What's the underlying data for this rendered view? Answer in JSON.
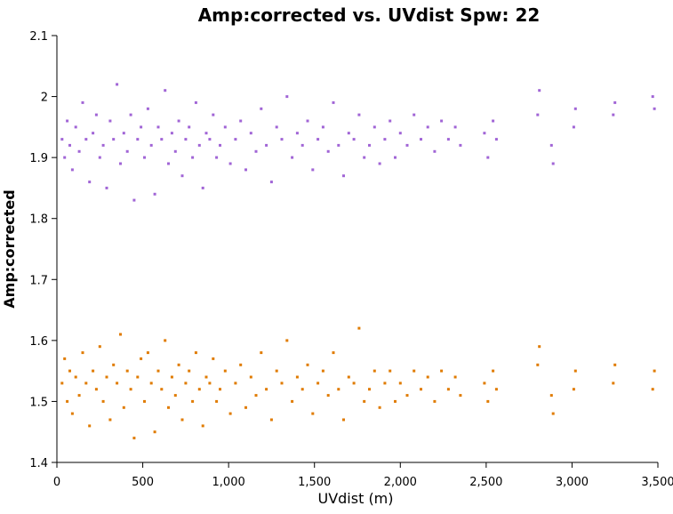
{
  "chart_data": {
    "type": "scatter",
    "title": "Amp:corrected vs. UVdist Spw: 22",
    "xlabel": "UVdist (m)",
    "ylabel": "Amp:corrected",
    "xlim": [
      0,
      3500
    ],
    "ylim": [
      1.4,
      2.1
    ],
    "x_ticks": [
      {
        "value": 0,
        "label": "0"
      },
      {
        "value": 500,
        "label": "500"
      },
      {
        "value": 1000,
        "label": "1,000"
      },
      {
        "value": 1500,
        "label": "1,500"
      },
      {
        "value": 2000,
        "label": "2,000"
      },
      {
        "value": 2500,
        "label": "2,500"
      },
      {
        "value": 3000,
        "label": "3,000"
      },
      {
        "value": 3500,
        "label": "3,500"
      }
    ],
    "y_ticks": [
      {
        "value": 1.4,
        "label": "1.4"
      },
      {
        "value": 1.5,
        "label": "1.5"
      },
      {
        "value": 1.6,
        "label": "1.6"
      },
      {
        "value": 1.7,
        "label": "1.7"
      },
      {
        "value": 1.8,
        "label": "1.8"
      },
      {
        "value": 1.9,
        "label": "1.9"
      },
      {
        "value": 2.0,
        "label": "2"
      },
      {
        "value": 2.1,
        "label": "2.1"
      }
    ],
    "grid": false,
    "legend": "none",
    "series": [
      {
        "color": "#a165d6",
        "points": [
          [
            30,
            1.93
          ],
          [
            45,
            1.9
          ],
          [
            60,
            1.96
          ],
          [
            75,
            1.92
          ],
          [
            90,
            1.88
          ],
          [
            110,
            1.95
          ],
          [
            130,
            1.91
          ],
          [
            150,
            1.99
          ],
          [
            170,
            1.93
          ],
          [
            190,
            1.86
          ],
          [
            210,
            1.94
          ],
          [
            230,
            1.97
          ],
          [
            250,
            1.9
          ],
          [
            270,
            1.92
          ],
          [
            290,
            1.85
          ],
          [
            310,
            1.96
          ],
          [
            330,
            1.93
          ],
          [
            350,
            2.02
          ],
          [
            370,
            1.89
          ],
          [
            390,
            1.94
          ],
          [
            410,
            1.91
          ],
          [
            430,
            1.97
          ],
          [
            450,
            1.83
          ],
          [
            470,
            1.93
          ],
          [
            490,
            1.95
          ],
          [
            510,
            1.9
          ],
          [
            530,
            1.98
          ],
          [
            550,
            1.92
          ],
          [
            570,
            1.84
          ],
          [
            590,
            1.95
          ],
          [
            610,
            1.93
          ],
          [
            630,
            2.01
          ],
          [
            650,
            1.89
          ],
          [
            670,
            1.94
          ],
          [
            690,
            1.91
          ],
          [
            710,
            1.96
          ],
          [
            730,
            1.87
          ],
          [
            750,
            1.93
          ],
          [
            770,
            1.95
          ],
          [
            790,
            1.9
          ],
          [
            810,
            1.99
          ],
          [
            830,
            1.92
          ],
          [
            850,
            1.85
          ],
          [
            870,
            1.94
          ],
          [
            890,
            1.93
          ],
          [
            910,
            1.97
          ],
          [
            930,
            1.9
          ],
          [
            950,
            1.92
          ],
          [
            980,
            1.95
          ],
          [
            1010,
            1.89
          ],
          [
            1040,
            1.93
          ],
          [
            1070,
            1.96
          ],
          [
            1100,
            1.88
          ],
          [
            1130,
            1.94
          ],
          [
            1160,
            1.91
          ],
          [
            1190,
            1.98
          ],
          [
            1220,
            1.92
          ],
          [
            1250,
            1.86
          ],
          [
            1280,
            1.95
          ],
          [
            1310,
            1.93
          ],
          [
            1340,
            2.0
          ],
          [
            1370,
            1.9
          ],
          [
            1400,
            1.94
          ],
          [
            1430,
            1.92
          ],
          [
            1460,
            1.96
          ],
          [
            1490,
            1.88
          ],
          [
            1520,
            1.93
          ],
          [
            1550,
            1.95
          ],
          [
            1580,
            1.91
          ],
          [
            1610,
            1.99
          ],
          [
            1640,
            1.92
          ],
          [
            1670,
            1.87
          ],
          [
            1700,
            1.94
          ],
          [
            1730,
            1.93
          ],
          [
            1760,
            1.97
          ],
          [
            1790,
            1.9
          ],
          [
            1820,
            1.92
          ],
          [
            1850,
            1.95
          ],
          [
            1880,
            1.89
          ],
          [
            1910,
            1.93
          ],
          [
            1940,
            1.96
          ],
          [
            1970,
            1.9
          ],
          [
            2000,
            1.94
          ],
          [
            2040,
            1.92
          ],
          [
            2080,
            1.97
          ],
          [
            2120,
            1.93
          ],
          [
            2160,
            1.95
          ],
          [
            2200,
            1.91
          ],
          [
            2240,
            1.96
          ],
          [
            2280,
            1.93
          ],
          [
            2320,
            1.95
          ],
          [
            2350,
            1.92
          ],
          [
            2490,
            1.94
          ],
          [
            2510,
            1.9
          ],
          [
            2540,
            1.96
          ],
          [
            2560,
            1.93
          ],
          [
            2800,
            1.97
          ],
          [
            2810,
            2.01
          ],
          [
            2880,
            1.92
          ],
          [
            2890,
            1.89
          ],
          [
            3010,
            1.95
          ],
          [
            3020,
            1.98
          ],
          [
            3240,
            1.97
          ],
          [
            3250,
            1.99
          ],
          [
            3470,
            2.0
          ],
          [
            3480,
            1.98
          ]
        ]
      },
      {
        "color": "#e07b00",
        "points": [
          [
            30,
            1.53
          ],
          [
            45,
            1.57
          ],
          [
            60,
            1.5
          ],
          [
            75,
            1.55
          ],
          [
            90,
            1.48
          ],
          [
            110,
            1.54
          ],
          [
            130,
            1.51
          ],
          [
            150,
            1.58
          ],
          [
            170,
            1.53
          ],
          [
            190,
            1.46
          ],
          [
            210,
            1.55
          ],
          [
            230,
            1.52
          ],
          [
            250,
            1.59
          ],
          [
            270,
            1.5
          ],
          [
            290,
            1.54
          ],
          [
            310,
            1.47
          ],
          [
            330,
            1.56
          ],
          [
            350,
            1.53
          ],
          [
            370,
            1.61
          ],
          [
            390,
            1.49
          ],
          [
            410,
            1.55
          ],
          [
            430,
            1.52
          ],
          [
            450,
            1.44
          ],
          [
            470,
            1.54
          ],
          [
            490,
            1.57
          ],
          [
            510,
            1.5
          ],
          [
            530,
            1.58
          ],
          [
            550,
            1.53
          ],
          [
            570,
            1.45
          ],
          [
            590,
            1.55
          ],
          [
            610,
            1.52
          ],
          [
            630,
            1.6
          ],
          [
            650,
            1.49
          ],
          [
            670,
            1.54
          ],
          [
            690,
            1.51
          ],
          [
            710,
            1.56
          ],
          [
            730,
            1.47
          ],
          [
            750,
            1.53
          ],
          [
            770,
            1.55
          ],
          [
            790,
            1.5
          ],
          [
            810,
            1.58
          ],
          [
            830,
            1.52
          ],
          [
            850,
            1.46
          ],
          [
            870,
            1.54
          ],
          [
            890,
            1.53
          ],
          [
            910,
            1.57
          ],
          [
            930,
            1.5
          ],
          [
            950,
            1.52
          ],
          [
            980,
            1.55
          ],
          [
            1010,
            1.48
          ],
          [
            1040,
            1.53
          ],
          [
            1070,
            1.56
          ],
          [
            1100,
            1.49
          ],
          [
            1130,
            1.54
          ],
          [
            1160,
            1.51
          ],
          [
            1190,
            1.58
          ],
          [
            1220,
            1.52
          ],
          [
            1250,
            1.47
          ],
          [
            1280,
            1.55
          ],
          [
            1310,
            1.53
          ],
          [
            1340,
            1.6
          ],
          [
            1370,
            1.5
          ],
          [
            1400,
            1.54
          ],
          [
            1430,
            1.52
          ],
          [
            1460,
            1.56
          ],
          [
            1490,
            1.48
          ],
          [
            1520,
            1.53
          ],
          [
            1550,
            1.55
          ],
          [
            1580,
            1.51
          ],
          [
            1610,
            1.58
          ],
          [
            1640,
            1.52
          ],
          [
            1670,
            1.47
          ],
          [
            1700,
            1.54
          ],
          [
            1730,
            1.53
          ],
          [
            1760,
            1.62
          ],
          [
            1790,
            1.5
          ],
          [
            1820,
            1.52
          ],
          [
            1850,
            1.55
          ],
          [
            1880,
            1.49
          ],
          [
            1910,
            1.53
          ],
          [
            1940,
            1.55
          ],
          [
            1970,
            1.5
          ],
          [
            2000,
            1.53
          ],
          [
            2040,
            1.51
          ],
          [
            2080,
            1.55
          ],
          [
            2120,
            1.52
          ],
          [
            2160,
            1.54
          ],
          [
            2200,
            1.5
          ],
          [
            2240,
            1.55
          ],
          [
            2280,
            1.52
          ],
          [
            2320,
            1.54
          ],
          [
            2350,
            1.51
          ],
          [
            2490,
            1.53
          ],
          [
            2510,
            1.5
          ],
          [
            2540,
            1.55
          ],
          [
            2560,
            1.52
          ],
          [
            2800,
            1.56
          ],
          [
            2810,
            1.59
          ],
          [
            2880,
            1.51
          ],
          [
            2890,
            1.48
          ],
          [
            3010,
            1.52
          ],
          [
            3020,
            1.55
          ],
          [
            3240,
            1.53
          ],
          [
            3250,
            1.56
          ],
          [
            3470,
            1.52
          ],
          [
            3480,
            1.55
          ]
        ]
      }
    ]
  }
}
